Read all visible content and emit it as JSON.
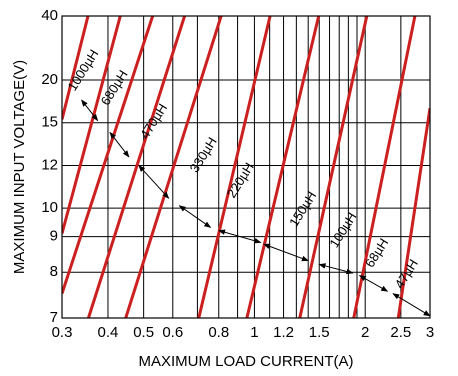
{
  "chart_data": {
    "type": "line",
    "title": "",
    "xlabel": "MAXIMUM LOAD CURRENT(A)",
    "ylabel": "MAXIMUM INPUT VOLTAGE(V)",
    "x_scale": "log",
    "y_scale": "reciprocal",
    "grid": true,
    "xlim": [
      0.3,
      3
    ],
    "ylim": [
      7,
      40
    ],
    "x_ticks": [
      {
        "value": 0.3,
        "label": "0.3"
      },
      {
        "value": 0.4,
        "label": "0.4"
      },
      {
        "value": 0.5,
        "label": "0.5"
      },
      {
        "value": 0.6,
        "label": "0.6"
      },
      {
        "value": 0.8,
        "label": "0.8"
      },
      {
        "value": 1,
        "label": "1"
      },
      {
        "value": 1.2,
        "label": "1.2"
      },
      {
        "value": 1.5,
        "label": "1.5"
      },
      {
        "value": 2,
        "label": "2"
      },
      {
        "value": 2.5,
        "label": "2.5"
      },
      {
        "value": 3,
        "label": "3"
      }
    ],
    "x_grid": [
      0.3,
      0.4,
      0.5,
      0.6,
      0.7,
      0.8,
      0.9,
      1,
      1.1,
      1.2,
      1.3,
      1.4,
      1.5,
      1.6,
      1.7,
      1.8,
      1.9,
      2,
      2.5,
      3
    ],
    "y_ticks": [
      {
        "value": 40,
        "label": "40"
      },
      {
        "value": 20,
        "label": "20"
      },
      {
        "value": 15,
        "label": "15"
      },
      {
        "value": 12,
        "label": "12"
      },
      {
        "value": 10,
        "label": "10"
      },
      {
        "value": 9,
        "label": "9"
      },
      {
        "value": 8,
        "label": "8"
      },
      {
        "value": 7,
        "label": "7"
      }
    ],
    "series_color": "#cc1f1f",
    "series": [
      {
        "name": "1000µH",
        "points": [
          [
            0.3,
            15.3
          ],
          [
            0.353,
            40
          ]
        ]
      },
      {
        "name": "680µH",
        "points": [
          [
            0.3,
            9.1
          ],
          [
            0.432,
            40
          ]
        ]
      },
      {
        "name": "470µH",
        "points": [
          [
            0.3,
            7.5
          ],
          [
            0.529,
            40
          ]
        ]
      },
      {
        "name": "330µH",
        "points": [
          [
            0.354,
            7
          ],
          [
            0.646,
            40
          ]
        ]
      },
      {
        "name": "220µH",
        "points": [
          [
            0.447,
            7
          ],
          [
            0.812,
            40
          ]
        ]
      },
      {
        "name": "150µH",
        "points": [
          [
            0.706,
            7
          ],
          [
            1.103,
            40
          ]
        ]
      },
      {
        "name": "100µH",
        "points": [
          [
            0.954,
            7
          ],
          [
            1.495,
            40
          ]
        ]
      },
      {
        "name": "68µH",
        "points": [
          [
            1.328,
            7
          ],
          [
            2.02,
            40
          ]
        ]
      },
      {
        "name": "47µH",
        "points": [
          [
            1.862,
            7
          ],
          [
            2.73,
            40
          ]
        ]
      },
      {
        "name": "",
        "points": [
          [
            2.46,
            7
          ],
          [
            3,
            16.4
          ]
        ]
      }
    ],
    "annotations": [
      {
        "text": "1000µH",
        "x": 0.344,
        "y": 21.6
      },
      {
        "text": "680µH",
        "x": 0.418,
        "y": 18.8
      },
      {
        "text": "470µH",
        "x": 0.535,
        "y": 15.1
      },
      {
        "text": "330µH",
        "x": 0.73,
        "y": 12.6
      },
      {
        "text": "220µH",
        "x": 0.92,
        "y": 11.2
      },
      {
        "text": "150µH",
        "x": 1.36,
        "y": 9.95
      },
      {
        "text": "100µH",
        "x": 1.75,
        "y": 9.2
      },
      {
        "text": "68µH",
        "x": 2.16,
        "y": 8.5
      },
      {
        "text": "47µH",
        "x": 2.6,
        "y": 7.95
      }
    ],
    "arrows": [
      [
        [
          0.339,
          17.3
        ],
        [
          0.375,
          15.2
        ]
      ],
      [
        [
          0.405,
          14.2
        ],
        [
          0.456,
          12.5
        ]
      ],
      [
        [
          0.485,
          12.0
        ],
        [
          0.585,
          10.4
        ]
      ],
      [
        [
          0.625,
          10.1
        ],
        [
          0.76,
          9.3
        ]
      ],
      [
        [
          0.8,
          9.2
        ],
        [
          1.04,
          8.82
        ]
      ],
      [
        [
          1.06,
          8.77
        ],
        [
          1.4,
          8.3
        ]
      ],
      [
        [
          1.5,
          8.2
        ],
        [
          1.85,
          7.98
        ]
      ],
      [
        [
          1.93,
          7.92
        ],
        [
          2.3,
          7.55
        ]
      ],
      [
        [
          2.38,
          7.5
        ],
        [
          3.0,
          7.04
        ]
      ]
    ]
  }
}
